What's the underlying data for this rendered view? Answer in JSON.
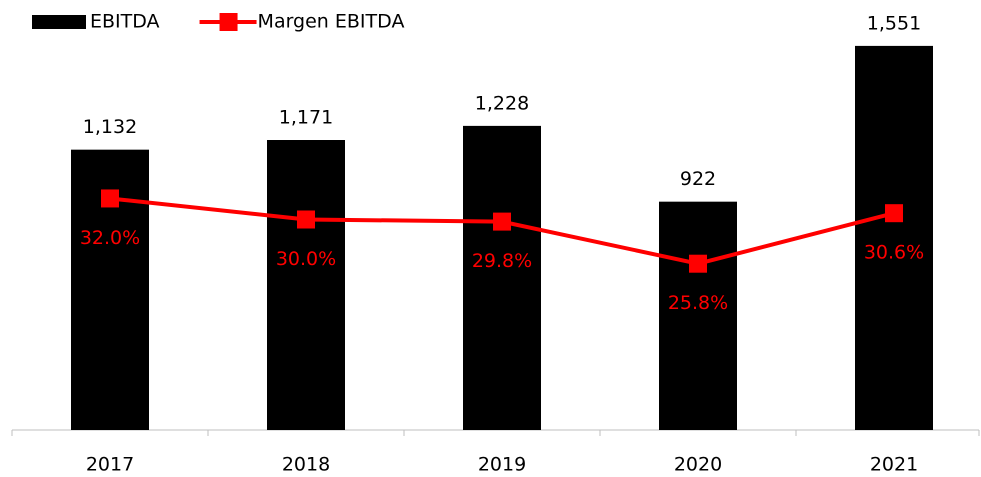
{
  "chart_data": {
    "type": "bar_line",
    "categories": [
      "2017",
      "2018",
      "2019",
      "2020",
      "2021"
    ],
    "series": [
      {
        "name": "EBITDA",
        "type": "bar",
        "color": "#000000",
        "values": [
          1132,
          1171,
          1228,
          922,
          1551
        ],
        "value_labels": [
          "1,132",
          "1,171",
          "1,228",
          "922",
          "1,551"
        ]
      },
      {
        "name": "Margen EBITDA",
        "type": "line",
        "axis": "y2",
        "color": "#ff0000",
        "values": [
          32.0,
          30.0,
          29.8,
          25.8,
          30.6
        ],
        "value_labels": [
          "32.0%",
          "30.0%",
          "29.8%",
          "25.8%",
          "30.6%"
        ]
      }
    ],
    "ylim": [
      0,
      1700
    ],
    "y2lim": [
      10,
      50
    ],
    "legend": "top-left"
  }
}
